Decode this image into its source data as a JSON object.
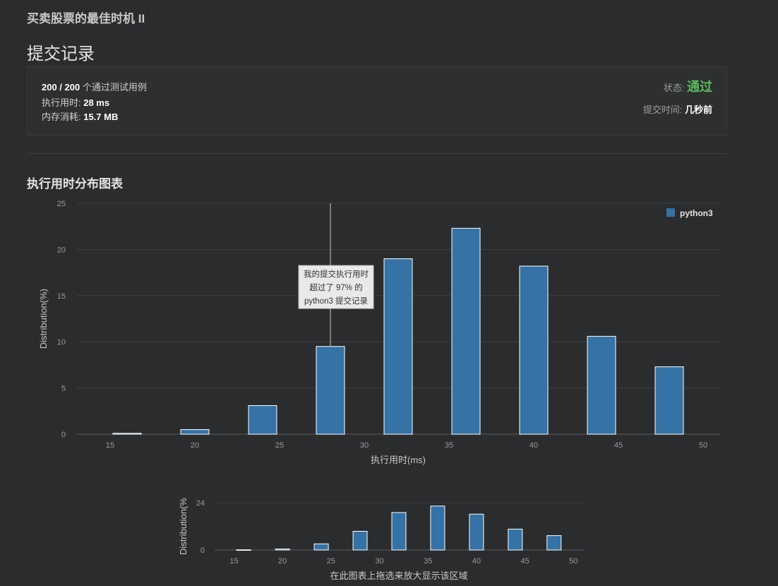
{
  "problem_title": "买卖股票的最佳时机 II",
  "page_title": "提交记录",
  "summary": {
    "passed": "200 / 200",
    "passed_suffix": "个通过测试用例",
    "runtime_label": "执行用时: ",
    "runtime_value": "28 ms",
    "memory_label": "内存消耗: ",
    "memory_value": "15.7 MB",
    "status_label": "状态: ",
    "status_value": "通过",
    "submit_time_label": "提交时间: ",
    "submit_time_value": "几秒前"
  },
  "section_title": "执行用时分布图表",
  "colors": {
    "bar": "#3572a5",
    "status_pass": "#5cb85c",
    "background": "#2b2c2e"
  },
  "chart_data": [
    {
      "type": "bar",
      "title": "",
      "xlabel": "执行用时(ms)",
      "ylabel": "Distribution(%)",
      "xlim": [
        13,
        51
      ],
      "ylim": [
        0,
        25
      ],
      "x_ticks": [
        15,
        20,
        25,
        30,
        35,
        40,
        45,
        50
      ],
      "y_ticks": [
        0,
        5,
        10,
        15,
        20,
        25
      ],
      "grid": true,
      "legend": "top-right",
      "series": [
        {
          "name": "python3",
          "x": [
            16,
            20,
            24,
            28,
            32,
            36,
            40,
            44,
            48
          ],
          "values": [
            0.1,
            0.5,
            3.1,
            9.5,
            19.0,
            22.3,
            18.2,
            10.6,
            7.3
          ]
        }
      ],
      "marker": {
        "x": 28
      },
      "tooltip_lines": [
        "我的提交执行用时",
        "超过了 97% 的",
        "python3 提交记录"
      ]
    },
    {
      "type": "bar",
      "title": "",
      "xlabel": "在此图表上拖选来放大显示该区域",
      "ylabel": "Distribution(%",
      "xlim": [
        13,
        51
      ],
      "ylim": [
        0,
        24
      ],
      "x_ticks": [
        15,
        20,
        25,
        30,
        35,
        40,
        45,
        50
      ],
      "y_ticks": [
        0,
        24
      ],
      "grid": true,
      "series": [
        {
          "x": [
            16,
            20,
            24,
            28,
            32,
            36,
            40,
            44,
            48
          ],
          "values": [
            0.1,
            0.5,
            3.1,
            9.5,
            19.0,
            22.3,
            18.2,
            10.6,
            7.3
          ]
        }
      ]
    }
  ]
}
